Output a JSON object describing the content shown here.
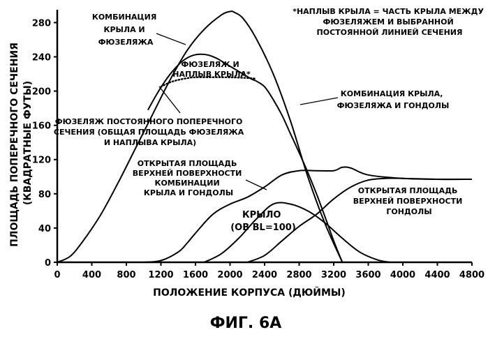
{
  "chart_data": {
    "type": "line",
    "xlabel": "ПОЛОЖЕНИЕ КОРПУСА (ДЮЙМЫ)",
    "ylabel": [
      "ПЛОЩАДЬ ПОПЕРЕЧНОГО СЕЧЕНИЯ",
      "(КВАДРАТНЫЕ ФУТЫ)"
    ],
    "xlim": [
      0,
      4800
    ],
    "ylim": [
      0,
      295
    ],
    "xticks": [
      0,
      400,
      800,
      1200,
      1600,
      2000,
      2400,
      2800,
      3200,
      3600,
      4000,
      4400,
      4800
    ],
    "yticks": [
      0,
      40,
      80,
      120,
      160,
      200,
      240,
      280
    ],
    "grid": false,
    "figure_label": "ФИГ. 6А",
    "footnote": [
      "*НАПЛЫВ КРЫЛА = ЧАСТЬ КРЫЛА МЕЖДУ",
      "ФЮЗЕЛЯЖЕМ И ВЫБРАННОЙ",
      "ПОСТОЯННОЙ ЛИНИЕЙ СЕЧЕНИЯ"
    ],
    "series": [
      {
        "id": "wing-fuselage-combo",
        "label": [
          "КОМБИНАЦИЯ",
          "КРЫЛА И",
          "ФЮЗЕЛЯЖА"
        ],
        "style": "solid",
        "x": [
          0,
          150,
          300,
          500,
          700,
          900,
          1100,
          1300,
          1500,
          1700,
          1900,
          2000,
          2050,
          2150,
          2300,
          2500,
          2700,
          2900,
          3100,
          3300
        ],
        "y": [
          0,
          7,
          25,
          55,
          92,
          132,
          172,
          212,
          247,
          272,
          289,
          293,
          292,
          285,
          262,
          220,
          165,
          100,
          45,
          0
        ]
      },
      {
        "id": "fuselage-and-strake",
        "label": [
          "ФЮЗЕЛЯЖ И",
          "НАПЛЫВ КРЫЛА*"
        ],
        "style": "solid",
        "x": [
          1050,
          1150,
          1250,
          1350,
          1450,
          1550,
          1650,
          1750,
          1850,
          1950,
          2050,
          2150,
          2250,
          2300
        ],
        "y": [
          178,
          196,
          212,
          225,
          235,
          241,
          243,
          242,
          238,
          232,
          226,
          220,
          214,
          212
        ]
      },
      {
        "id": "constant-section-fuselage",
        "label": [
          "ФЮЗЕЛЯЖ ПОСТОЯННОГО ПОПЕРЕЧНОГО",
          "СЕЧЕНИЯ (ОБЩАЯ ПЛОЩАДЬ ФЮЗЕЛЯЖА",
          "И НАПЛЫВА КРЫЛА)"
        ],
        "style": "dotted",
        "x": [
          1200,
          1300,
          1400,
          1500,
          1600,
          2000,
          2250,
          2300
        ],
        "y": [
          205,
          210,
          213,
          215,
          216,
          216,
          215,
          214
        ]
      },
      {
        "id": "wing-fuselage-nacelle",
        "label": [
          "КОМБИНАЦИЯ КРЫЛА,",
          "ФЮЗЕЛЯЖА И ГОНДОЛЫ"
        ],
        "style": "solid",
        "x": [
          2300,
          2400,
          2500,
          2600,
          2700,
          2800,
          2900,
          3000,
          3100,
          3200,
          3300
        ],
        "y": [
          212,
          205,
          190,
          172,
          150,
          128,
          105,
          80,
          53,
          25,
          0
        ]
      },
      {
        "id": "wing-nacelle-exposed",
        "label": [
          "ОТКРЫТАЯ ПЛОЩАДЬ",
          "ВЕРХНЕЙ ПОВЕРХНОСТИ",
          "КОМБИНАЦИИ",
          "КРЫЛА И ГОНДОЛЫ"
        ],
        "style": "solid",
        "x": [
          1000,
          1200,
          1400,
          1500,
          1600,
          1800,
          2000,
          2200,
          2400,
          2600,
          2800,
          3000,
          3200,
          3300,
          3400,
          3600,
          4000,
          4400,
          4800
        ],
        "y": [
          0,
          2,
          12,
          22,
          34,
          56,
          68,
          76,
          88,
          102,
          107,
          107,
          107,
          111,
          110,
          102,
          98,
          97,
          97
        ]
      },
      {
        "id": "wing-bl100",
        "label": [
          "КРЫЛО",
          "(ОВ BL=100)"
        ],
        "style": "solid",
        "x": [
          1700,
          1900,
          2100,
          2300,
          2500,
          2700,
          2900,
          3100,
          3300,
          3500,
          3700,
          3850
        ],
        "y": [
          0,
          10,
          28,
          50,
          68,
          68,
          60,
          46,
          28,
          12,
          3,
          0
        ]
      },
      {
        "id": "nacelle-exposed",
        "label": [
          "ОТКРЫТАЯ ПЛОЩАДЬ",
          "ВЕРХНЕЙ ПОВЕРХНОСТИ",
          "ГОНДОЛЫ"
        ],
        "style": "solid",
        "x": [
          2200,
          2400,
          2600,
          2800,
          3000,
          3200,
          3400,
          3600,
          3800,
          4000,
          4400,
          4800
        ],
        "y": [
          0,
          8,
          25,
          42,
          56,
          74,
          88,
          96,
          98,
          98,
          97,
          97
        ]
      }
    ]
  }
}
